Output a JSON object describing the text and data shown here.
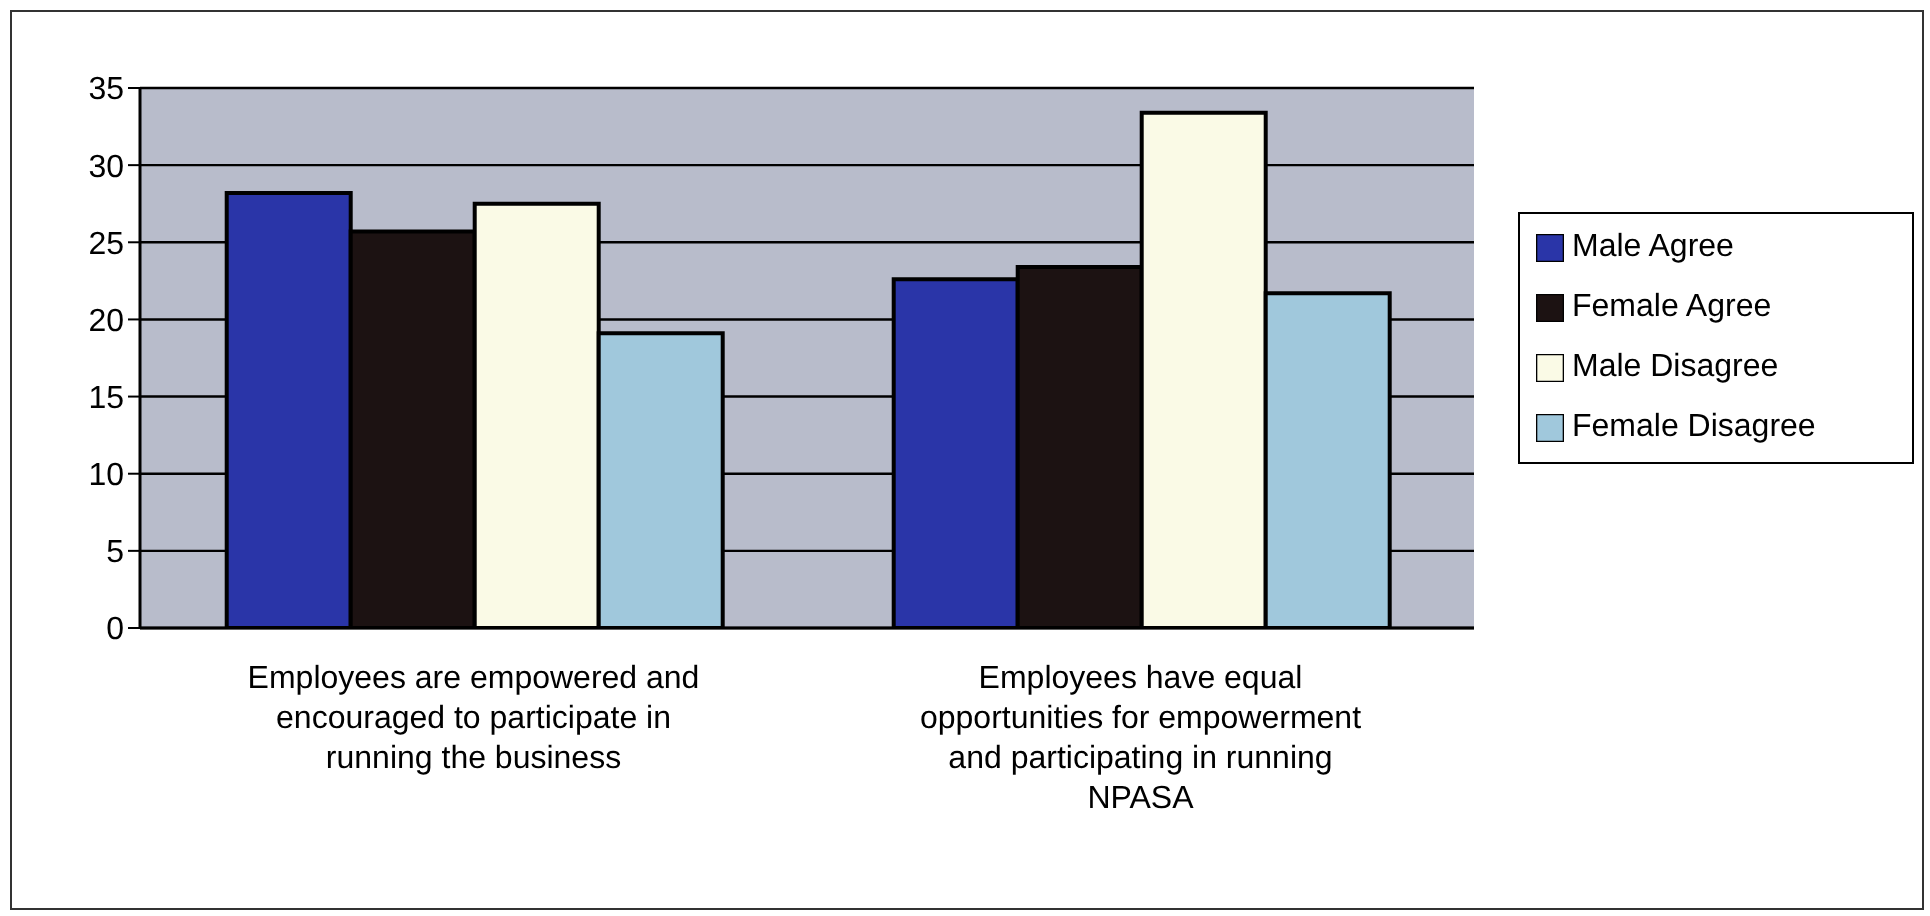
{
  "chart_data": {
    "type": "bar",
    "categories": [
      "Employees are empowered and encouraged to participate in running the business",
      "Employees have equal opportunities for empowerment and participating in running NPASA"
    ],
    "series": [
      {
        "name": "Male Agree",
        "color": "#2a35a8",
        "values": [
          28.2,
          22.6
        ]
      },
      {
        "name": "Female Agree",
        "color": "#1c1212",
        "values": [
          25.7,
          23.4
        ]
      },
      {
        "name": "Male Disagree",
        "color": "#fafae6",
        "values": [
          27.5,
          33.4
        ]
      },
      {
        "name": "Female Disagree",
        "color": "#a0c8dc",
        "values": [
          19.1,
          21.7
        ]
      }
    ],
    "ylim": [
      0,
      35
    ],
    "yticks": [
      0,
      5,
      10,
      15,
      20,
      25,
      30,
      35
    ],
    "grid": "y",
    "legend": "right"
  }
}
